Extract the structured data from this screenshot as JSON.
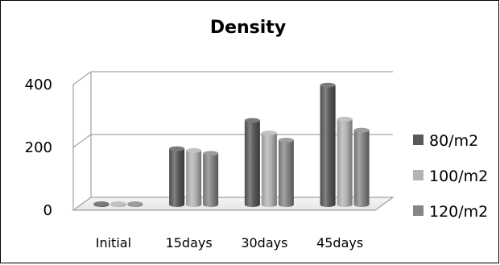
{
  "chart_data": {
    "type": "bar",
    "title": "Density",
    "xlabel": "",
    "ylabel": "",
    "categories": [
      "Initial",
      "15days",
      "30days",
      "45days"
    ],
    "series": [
      {
        "name": "80/m2",
        "values": [
          2,
          178,
          268,
          380
        ],
        "color": "#595959"
      },
      {
        "name": "100/m2",
        "values": [
          2,
          172,
          228,
          272
        ],
        "color": "#b3b3b3"
      },
      {
        "name": "120/m2",
        "values": [
          2,
          163,
          205,
          237
        ],
        "color": "#858585"
      }
    ],
    "yticks": [
      "0",
      "200",
      "400"
    ],
    "ylim": [
      0,
      400
    ],
    "grid": true,
    "style": "3d-cylinder",
    "legend_position": "right"
  }
}
